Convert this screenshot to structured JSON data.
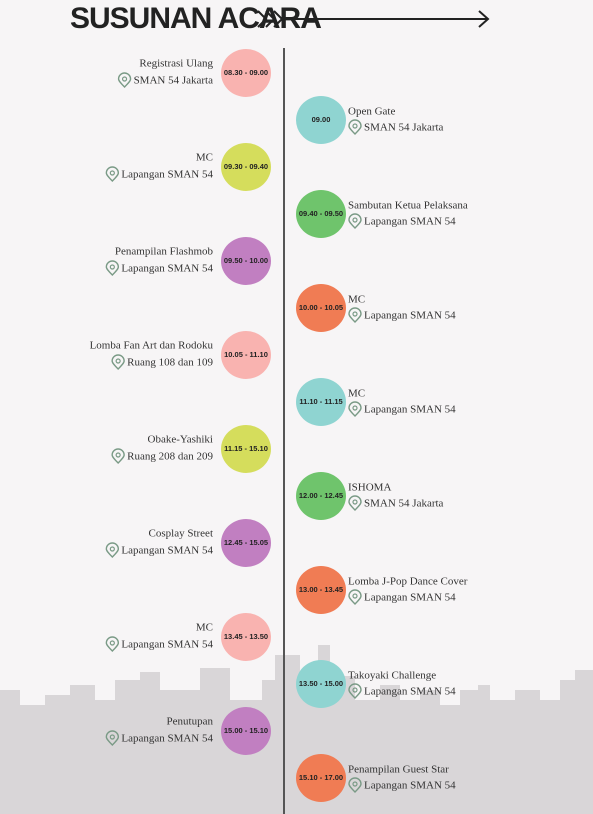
{
  "title": "SUSUNAN ACARA",
  "events": [
    {
      "time": "08.30 - 09.00",
      "name": "Registrasi Ulang",
      "location": "SMAN 54 Jakarta",
      "color": "#f9b3b0"
    },
    {
      "time": "09.00",
      "name": "Open Gate",
      "location": "SMAN 54 Jakarta",
      "color": "#8fd4d1"
    },
    {
      "time": "09.30 - 09.40",
      "name": "MC",
      "location": "Lapangan SMAN 54",
      "color": "#d5dd5c"
    },
    {
      "time": "09.40 - 09.50",
      "name": "Sambutan Ketua Pelaksana",
      "location": "Lapangan SMAN 54",
      "color": "#6fc46c"
    },
    {
      "time": "09.50 - 10.00",
      "name": "Penampilan Flashmob",
      "location": "Lapangan SMAN 54",
      "color": "#c17fc1"
    },
    {
      "time": "10.00 - 10.05",
      "name": "MC",
      "location": "Lapangan SMAN 54",
      "color": "#f07c54"
    },
    {
      "time": "10.05 - 11.10",
      "name": "Lomba Fan Art dan Rodoku",
      "location": "Ruang 108 dan 109",
      "color": "#f9b3b0"
    },
    {
      "time": "11.10 - 11.15",
      "name": "MC",
      "location": "Lapangan SMAN 54",
      "color": "#8fd4d1"
    },
    {
      "time": "11.15 - 15.10",
      "name": "Obake-Yashiki",
      "location": "Ruang 208 dan 209",
      "color": "#d5dd5c"
    },
    {
      "time": "12.00 - 12.45",
      "name": "ISHOMA",
      "location": "SMAN 54 Jakarta",
      "color": "#6fc46c"
    },
    {
      "time": "12.45 - 15.05",
      "name": "Cosplay Street",
      "location": "Lapangan SMAN 54",
      "color": "#c17fc1"
    },
    {
      "time": "13.00 - 13.45",
      "name": "Lomba J-Pop Dance Cover",
      "location": "Lapangan SMAN 54",
      "color": "#f07c54"
    },
    {
      "time": "13.45 - 13.50",
      "name": "MC",
      "location": "Lapangan SMAN 54",
      "color": "#f9b3b0"
    },
    {
      "time": "13.50 - 15.00",
      "name": "Takoyaki Challenge",
      "location": "Lapangan SMAN 54",
      "color": "#8fd4d1"
    },
    {
      "time": "15.00 - 15.10",
      "name": "Penutupan",
      "location": "Lapangan SMAN 54",
      "color": "#c17fc1"
    },
    {
      "time": "15.10 - 17.00",
      "name": "Penampilan Guest Star",
      "location": "Lapangan SMAN 54",
      "color": "#f07c54"
    }
  ]
}
